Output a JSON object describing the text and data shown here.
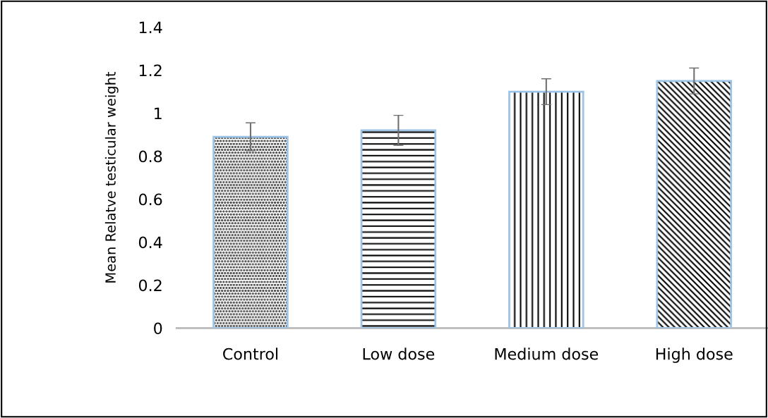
{
  "chart_data": {
    "type": "bar",
    "ylabel": "Mean Relatve testicular weight",
    "categories": [
      "Control",
      "Low dose",
      "Medium dose",
      "High dose"
    ],
    "values": [
      0.89,
      0.92,
      1.1,
      1.15
    ],
    "errors": [
      0.065,
      0.07,
      0.06,
      0.06
    ],
    "ylim": [
      0,
      1.4
    ],
    "yticks": [
      0,
      0.2,
      0.4,
      0.6,
      0.8,
      1,
      1.2,
      1.4
    ],
    "grid": false,
    "legend": false
  }
}
